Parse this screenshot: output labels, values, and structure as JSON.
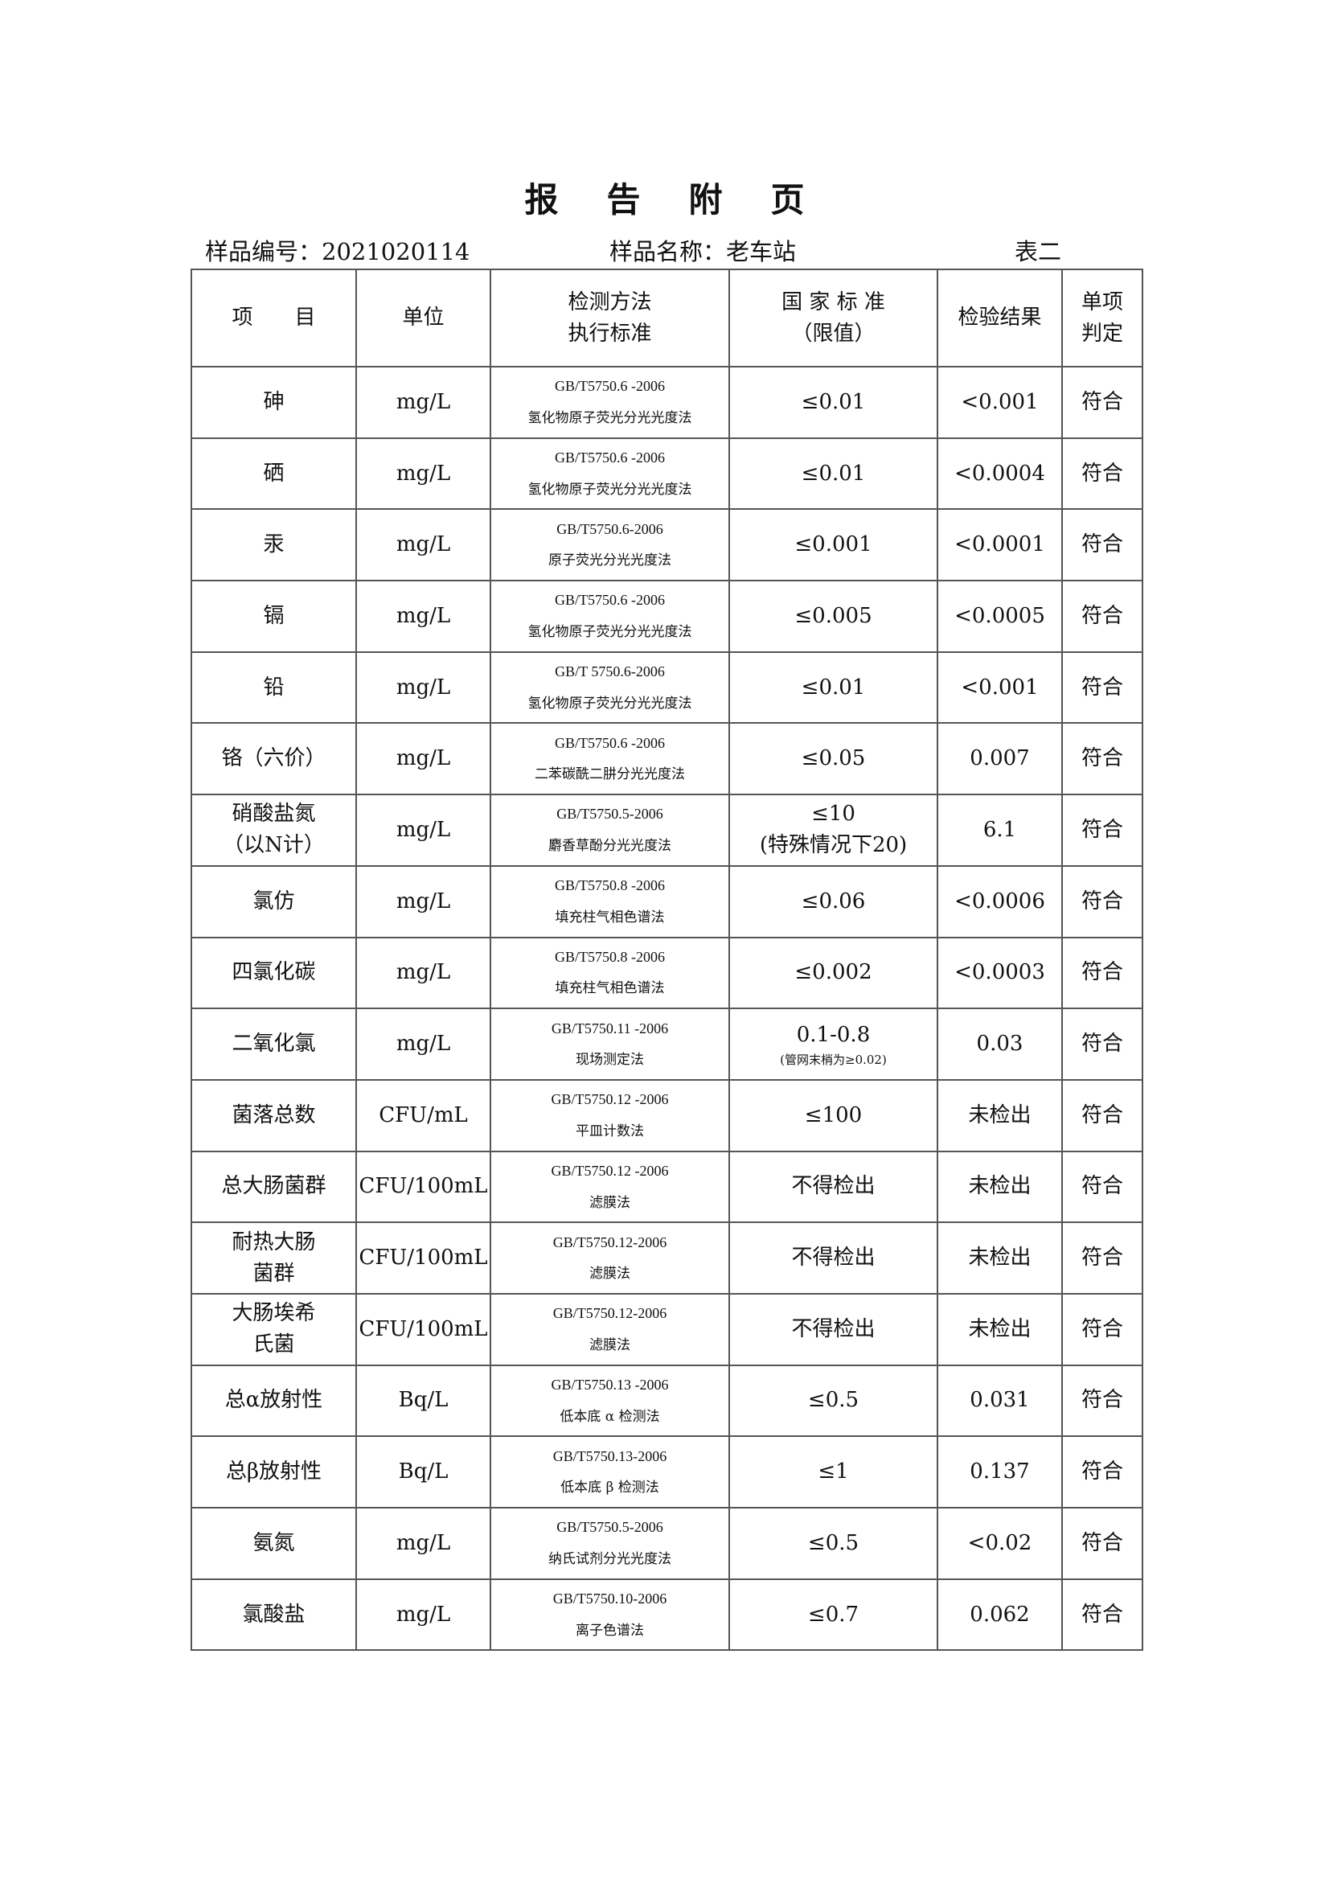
{
  "title": [
    "报",
    "告",
    "附",
    "页"
  ],
  "sample_no": "样品编号：2021020114",
  "sample_name": "样品名称：老车站",
  "table_label": "表二",
  "headers": {
    "item": "项　　目",
    "unit": "单位",
    "method1": "检测方法",
    "method2": "执行标准",
    "standard1": "国 家 标 准",
    "standard2": "（限值）",
    "result": "检验结果",
    "judge1": "单项",
    "judge2": "判定"
  },
  "rows": [
    {
      "item": "砷",
      "unit": "mg/L",
      "std": "GB/T5750.6 -2006",
      "method": "氢化物原子荧光分光光度法",
      "limit": "≤0.01",
      "result": "<0.001",
      "judge": "符合"
    },
    {
      "item": "硒",
      "unit": "mg/L",
      "std": "GB/T5750.6 -2006",
      "method": "氢化物原子荧光分光光度法",
      "limit": "≤0.01",
      "result": "<0.0004",
      "judge": "符合"
    },
    {
      "item": "汞",
      "unit": "mg/L",
      "std": "GB/T5750.6-2006",
      "method": "原子荧光分光光度法",
      "limit": "≤0.001",
      "result": "<0.0001",
      "judge": "符合"
    },
    {
      "item": "镉",
      "unit": "mg/L",
      "std": "GB/T5750.6 -2006",
      "method": "氢化物原子荧光分光光度法",
      "limit": "≤0.005",
      "result": "<0.0005",
      "judge": "符合"
    },
    {
      "item": "铅",
      "unit": "mg/L",
      "std": "GB/T 5750.6-2006",
      "method": "氢化物原子荧光分光光度法",
      "limit": "≤0.01",
      "result": "<0.001",
      "judge": "符合"
    },
    {
      "item": "铬（六价）",
      "unit": "mg/L",
      "std": "GB/T5750.6 -2006",
      "method": "二苯碳酰二肼分光光度法",
      "limit": "≤0.05",
      "result": "0.007",
      "judge": "符合"
    },
    {
      "item": "硝酸盐氮",
      "item2": "（以N计）",
      "unit": "mg/L",
      "std": "GB/T5750.5-2006",
      "method": "麝香草酚分光光度法",
      "limit": "≤10",
      "limit2": "(特殊情况下20)",
      "result": "6.1",
      "judge": "符合"
    },
    {
      "item": "氯仿",
      "unit": "mg/L",
      "std": "GB/T5750.8 -2006",
      "method": "填充柱气相色谱法",
      "limit": "≤0.06",
      "result": "<0.0006",
      "judge": "符合"
    },
    {
      "item": "四氯化碳",
      "unit": "mg/L",
      "std": "GB/T5750.8 -2006",
      "method": "填充柱气相色谱法",
      "limit": "≤0.002",
      "result": "<0.0003",
      "judge": "符合"
    },
    {
      "item": "二氧化氯",
      "unit": "mg/L",
      "std": "GB/T5750.11 -2006",
      "method": "现场测定法",
      "limit": "0.1-0.8",
      "limit_note": "(管网末梢为≥0.02)",
      "result": "0.03",
      "judge": "符合"
    },
    {
      "item": "菌落总数",
      "unit": "CFU/mL",
      "std": "GB/T5750.12 -2006",
      "method": "平皿计数法",
      "limit": "≤100",
      "result": "未检出",
      "judge": "符合"
    },
    {
      "item": "总大肠菌群",
      "unit": "CFU/100mL",
      "std": "GB/T5750.12 -2006",
      "method": "滤膜法",
      "limit": "不得检出",
      "result": "未检出",
      "judge": "符合"
    },
    {
      "item": "耐热大肠",
      "item2": "菌群",
      "unit": "CFU/100mL",
      "std": "GB/T5750.12-2006",
      "method": "滤膜法",
      "limit": "不得检出",
      "result": "未检出",
      "judge": "符合"
    },
    {
      "item": "大肠埃希",
      "item2": "氏菌",
      "unit": "CFU/100mL",
      "std": "GB/T5750.12-2006",
      "method": "滤膜法",
      "limit": "不得检出",
      "result": "未检出",
      "judge": "符合"
    },
    {
      "item": "总α放射性",
      "unit": "Bq/L",
      "std": "GB/T5750.13 -2006",
      "method": "低本底 α 检测法",
      "limit": "≤0.5",
      "result": "0.031",
      "judge": "符合"
    },
    {
      "item": "总β放射性",
      "unit": "Bq/L",
      "std": "GB/T5750.13-2006",
      "method": "低本底 β 检测法",
      "limit": "≤1",
      "result": "0.137",
      "judge": "符合"
    },
    {
      "item": "氨氮",
      "unit": "mg/L",
      "std": "GB/T5750.5-2006",
      "method": "纳氏试剂分光光度法",
      "limit": "≤0.5",
      "result": "<0.02",
      "judge": "符合"
    },
    {
      "item": "氯酸盐",
      "unit": "mg/L",
      "std": "GB/T5750.10-2006",
      "method": "离子色谱法",
      "limit": "≤0.7",
      "result": "0.062",
      "judge": "符合"
    }
  ]
}
